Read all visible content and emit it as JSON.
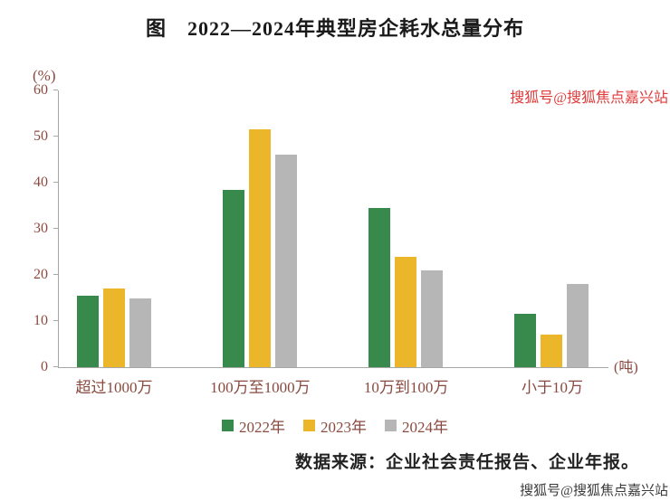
{
  "title": "图　2022—2024年典型房企耗水总量分布",
  "chart_data": {
    "type": "bar",
    "categories": [
      "超过1000万",
      "100万至1000万",
      "10万到100万",
      "小于10万"
    ],
    "series": [
      {
        "name": "2022年",
        "color": "#38894c",
        "values": [
          15.5,
          38.5,
          34.5,
          11.5
        ]
      },
      {
        "name": "2023年",
        "color": "#ecb62a",
        "values": [
          17,
          51.5,
          24,
          7
        ]
      },
      {
        "name": "2024年",
        "color": "#b6b6b6",
        "values": [
          15,
          46,
          21,
          18
        ]
      }
    ],
    "ylabel": "(%)",
    "xunit": "(吨)",
    "ylim": [
      0,
      60
    ],
    "yticks": [
      0,
      10,
      20,
      30,
      40,
      50,
      60
    ],
    "grid": false,
    "legend_position": "bottom"
  },
  "source": "数据来源：企业社会责任报告、企业年报。",
  "watermark_top": "搜狐号@搜狐焦点嘉兴站",
  "watermark_bottom": "搜狐号@搜狐焦点嘉兴站"
}
